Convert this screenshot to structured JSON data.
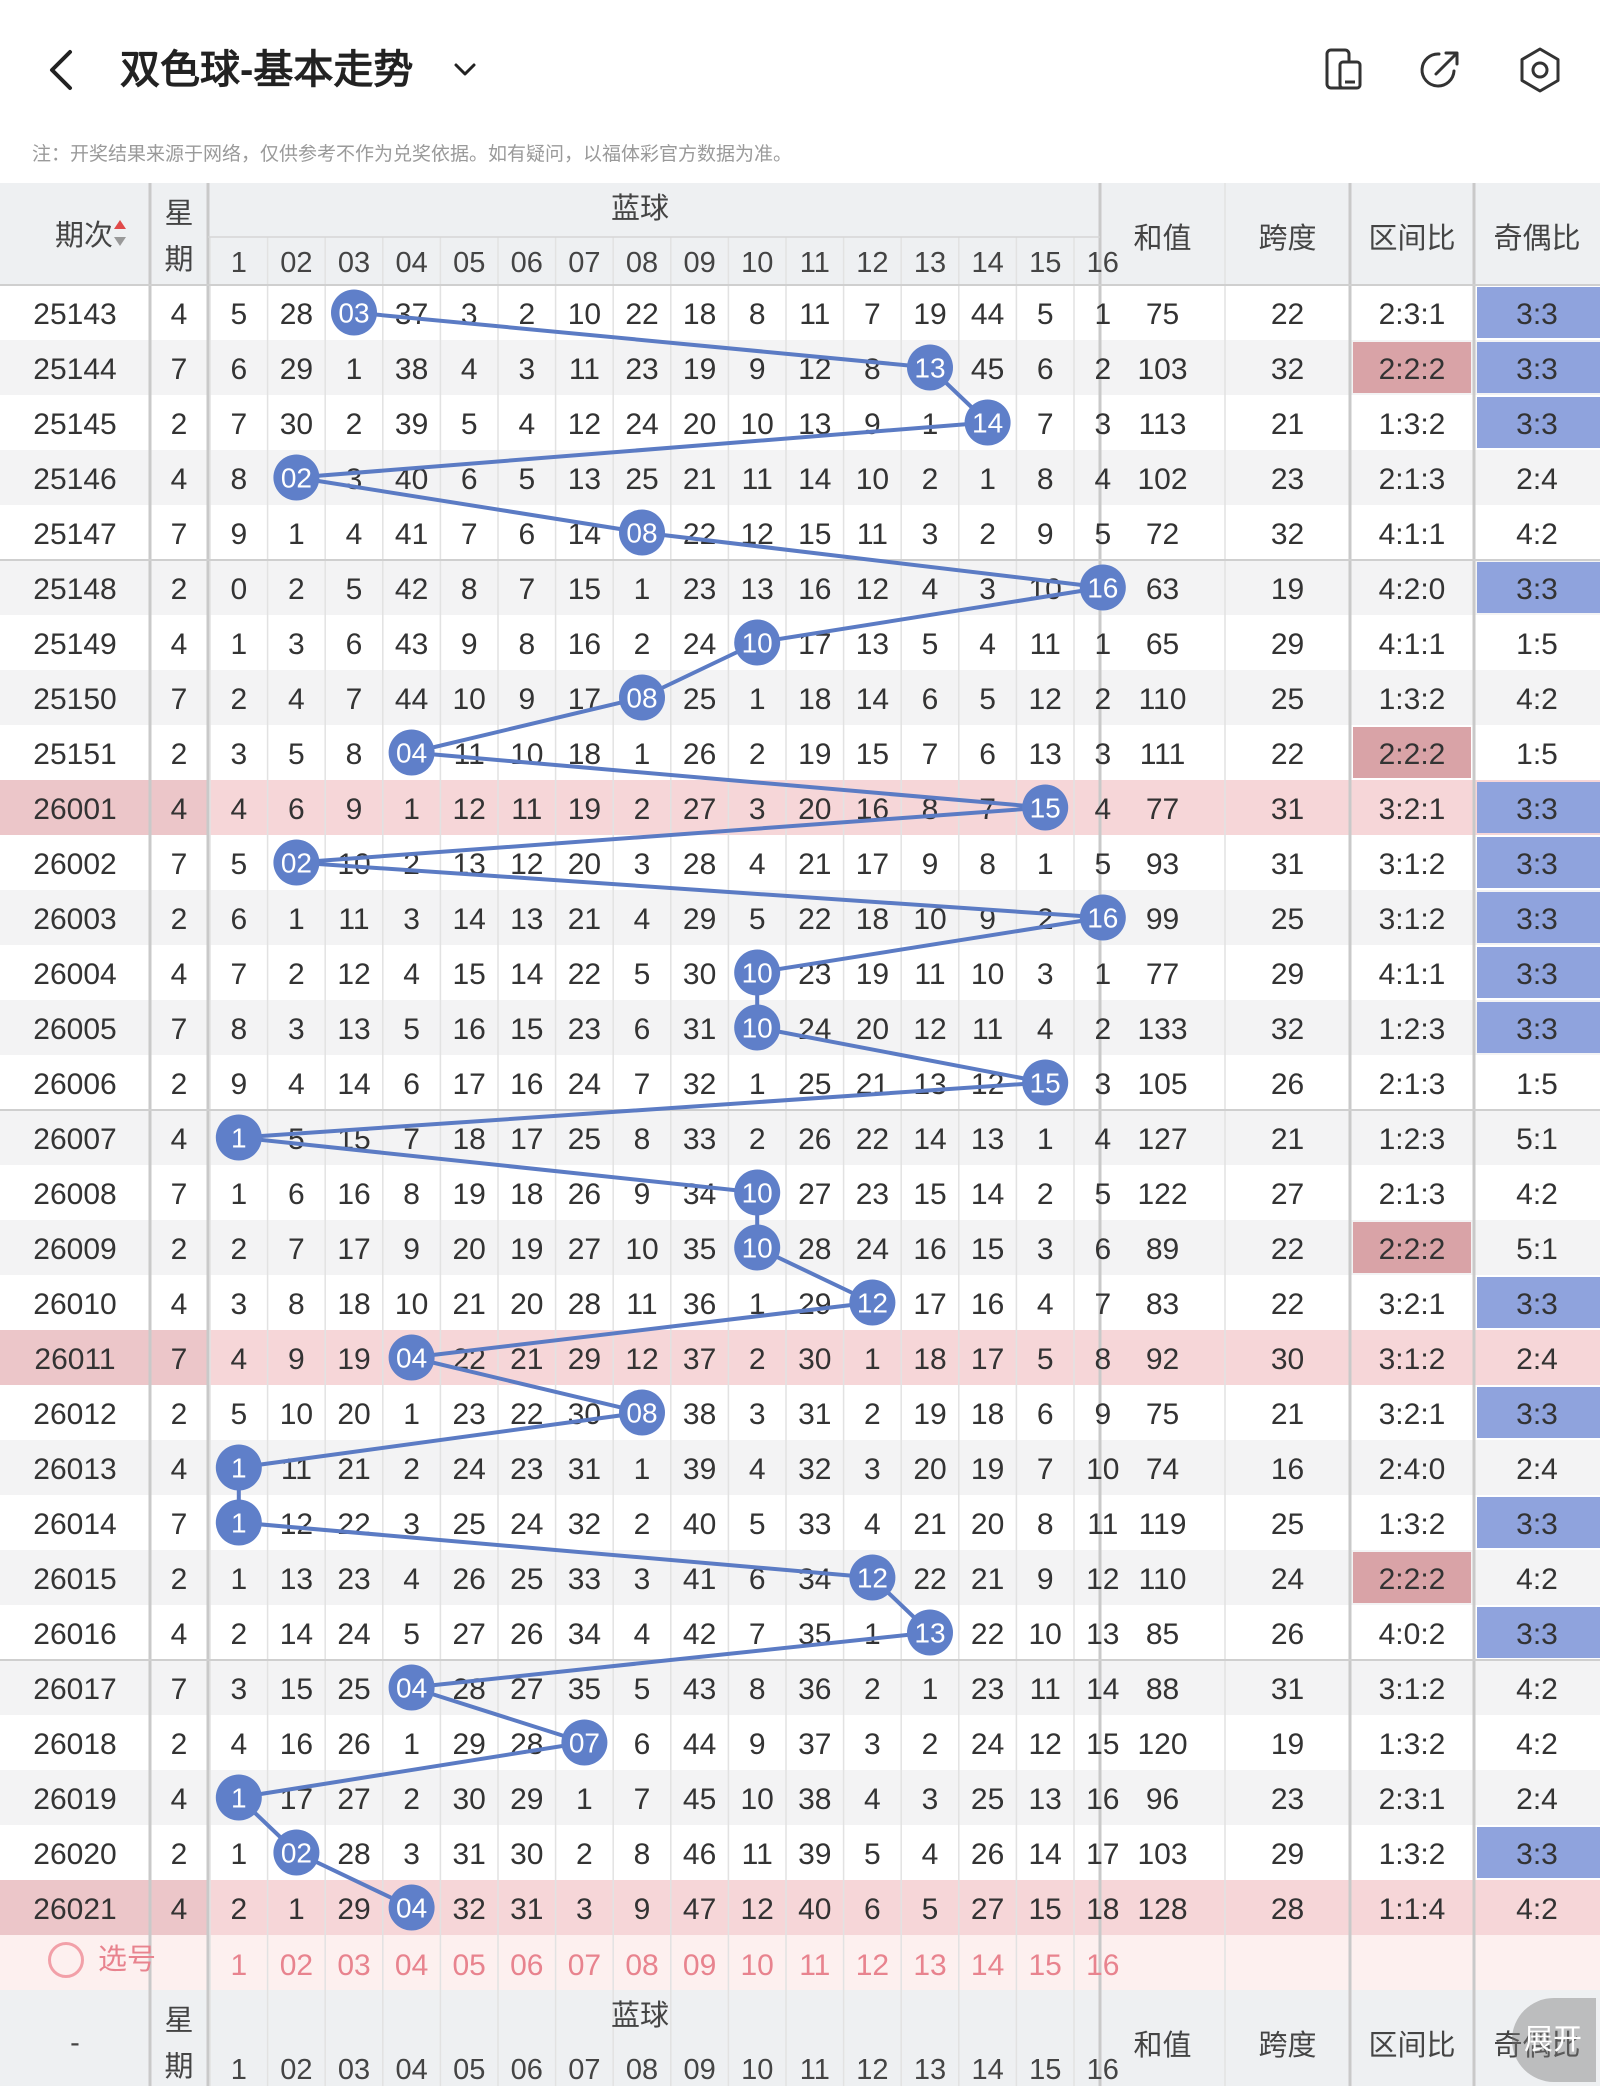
{
  "header": {
    "title": "双色球-基本走势",
    "icons": [
      "back-arrow-icon",
      "chevron-down-icon",
      "fold-device-icon",
      "share-icon",
      "settings-icon"
    ]
  },
  "notice": "注：开奖结果来源于网络，仅供参考不作为兑奖依据。如有疑问，以福体彩官方数据为准。",
  "table": {
    "headers": {
      "issue": "期次",
      "week": "星期",
      "blue": "蓝球",
      "sum": "和值",
      "span": "跨度",
      "zone_ratio": "区间比",
      "odd_even_ratio": "奇偶比"
    },
    "bottom_issue_placeholder": "-",
    "blue_columns": [
      "1",
      "02",
      "03",
      "04",
      "05",
      "06",
      "07",
      "08",
      "09",
      "10",
      "11",
      "12",
      "13",
      "14",
      "15",
      "16"
    ],
    "highlight_issues": [
      "26001",
      "26011",
      "26021"
    ],
    "rows": [
      {
        "issue": "25143",
        "week": "4",
        "blue": 3,
        "cells": [
          "5",
          "28",
          "03",
          "37",
          "3",
          "2",
          "10",
          "22",
          "18",
          "8",
          "11",
          "7",
          "19",
          "44",
          "5",
          "1"
        ],
        "sum": "75",
        "span": "22",
        "zone": "2:3:1",
        "oe": "3:3"
      },
      {
        "issue": "25144",
        "week": "7",
        "blue": 13,
        "cells": [
          "6",
          "29",
          "1",
          "38",
          "4",
          "3",
          "11",
          "23",
          "19",
          "9",
          "12",
          "8",
          "13",
          "45",
          "6",
          "2"
        ],
        "sum": "103",
        "span": "32",
        "zone": "2:2:2",
        "oe": "3:3"
      },
      {
        "issue": "25145",
        "week": "2",
        "blue": 14,
        "cells": [
          "7",
          "30",
          "2",
          "39",
          "5",
          "4",
          "12",
          "24",
          "20",
          "10",
          "13",
          "9",
          "1",
          "14",
          "7",
          "3"
        ],
        "sum": "113",
        "span": "21",
        "zone": "1:3:2",
        "oe": "3:3"
      },
      {
        "issue": "25146",
        "week": "4",
        "blue": 2,
        "cells": [
          "8",
          "02",
          "3",
          "40",
          "6",
          "5",
          "13",
          "25",
          "21",
          "11",
          "14",
          "10",
          "2",
          "1",
          "8",
          "4"
        ],
        "sum": "102",
        "span": "23",
        "zone": "2:1:3",
        "oe": "2:4"
      },
      {
        "issue": "25147",
        "week": "7",
        "blue": 8,
        "cells": [
          "9",
          "1",
          "4",
          "41",
          "7",
          "6",
          "14",
          "08",
          "22",
          "12",
          "15",
          "11",
          "3",
          "2",
          "9",
          "5"
        ],
        "sum": "72",
        "span": "32",
        "zone": "4:1:1",
        "oe": "4:2"
      },
      {
        "issue": "25148",
        "week": "2",
        "blue": 16,
        "cells": [
          "0",
          "2",
          "5",
          "42",
          "8",
          "7",
          "15",
          "1",
          "23",
          "13",
          "16",
          "12",
          "4",
          "3",
          "10",
          "16"
        ],
        "sum": "63",
        "span": "19",
        "zone": "4:2:0",
        "oe": "3:3"
      },
      {
        "issue": "25149",
        "week": "4",
        "blue": 10,
        "cells": [
          "1",
          "3",
          "6",
          "43",
          "9",
          "8",
          "16",
          "2",
          "24",
          "10",
          "17",
          "13",
          "5",
          "4",
          "11",
          "1"
        ],
        "sum": "65",
        "span": "29",
        "zone": "4:1:1",
        "oe": "1:5"
      },
      {
        "issue": "25150",
        "week": "7",
        "blue": 8,
        "cells": [
          "2",
          "4",
          "7",
          "44",
          "10",
          "9",
          "17",
          "08",
          "25",
          "1",
          "18",
          "14",
          "6",
          "5",
          "12",
          "2"
        ],
        "sum": "110",
        "span": "25",
        "zone": "1:3:2",
        "oe": "4:2"
      },
      {
        "issue": "25151",
        "week": "2",
        "blue": 4,
        "cells": [
          "3",
          "5",
          "8",
          "04",
          "11",
          "10",
          "18",
          "1",
          "26",
          "2",
          "19",
          "15",
          "7",
          "6",
          "13",
          "3"
        ],
        "sum": "111",
        "span": "22",
        "zone": "2:2:2",
        "oe": "1:5"
      },
      {
        "issue": "26001",
        "week": "4",
        "blue": 15,
        "cells": [
          "4",
          "6",
          "9",
          "1",
          "12",
          "11",
          "19",
          "2",
          "27",
          "3",
          "20",
          "16",
          "8",
          "7",
          "15",
          "4"
        ],
        "sum": "77",
        "span": "31",
        "zone": "3:2:1",
        "oe": "3:3"
      },
      {
        "issue": "26002",
        "week": "7",
        "blue": 2,
        "cells": [
          "5",
          "02",
          "10",
          "2",
          "13",
          "12",
          "20",
          "3",
          "28",
          "4",
          "21",
          "17",
          "9",
          "8",
          "1",
          "5"
        ],
        "sum": "93",
        "span": "31",
        "zone": "3:1:2",
        "oe": "3:3"
      },
      {
        "issue": "26003",
        "week": "2",
        "blue": 16,
        "cells": [
          "6",
          "1",
          "11",
          "3",
          "14",
          "13",
          "21",
          "4",
          "29",
          "5",
          "22",
          "18",
          "10",
          "9",
          "2",
          "16"
        ],
        "sum": "99",
        "span": "25",
        "zone": "3:1:2",
        "oe": "3:3"
      },
      {
        "issue": "26004",
        "week": "4",
        "blue": 10,
        "cells": [
          "7",
          "2",
          "12",
          "4",
          "15",
          "14",
          "22",
          "5",
          "30",
          "10",
          "23",
          "19",
          "11",
          "10",
          "3",
          "1"
        ],
        "sum": "77",
        "span": "29",
        "zone": "4:1:1",
        "oe": "3:3"
      },
      {
        "issue": "26005",
        "week": "7",
        "blue": 10,
        "cells": [
          "8",
          "3",
          "13",
          "5",
          "16",
          "15",
          "23",
          "6",
          "31",
          "10",
          "24",
          "20",
          "12",
          "11",
          "4",
          "2"
        ],
        "sum": "133",
        "span": "32",
        "zone": "1:2:3",
        "oe": "3:3"
      },
      {
        "issue": "26006",
        "week": "2",
        "blue": 15,
        "cells": [
          "9",
          "4",
          "14",
          "6",
          "17",
          "16",
          "24",
          "7",
          "32",
          "1",
          "25",
          "21",
          "13",
          "12",
          "15",
          "3"
        ],
        "sum": "105",
        "span": "26",
        "zone": "2:1:3",
        "oe": "1:5"
      },
      {
        "issue": "26007",
        "week": "4",
        "blue": 1,
        "cells": [
          "1",
          "5",
          "15",
          "7",
          "18",
          "17",
          "25",
          "8",
          "33",
          "2",
          "26",
          "22",
          "14",
          "13",
          "1",
          "4"
        ],
        "sum": "127",
        "span": "21",
        "zone": "1:2:3",
        "oe": "5:1"
      },
      {
        "issue": "26008",
        "week": "7",
        "blue": 10,
        "cells": [
          "1",
          "6",
          "16",
          "8",
          "19",
          "18",
          "26",
          "9",
          "34",
          "10",
          "27",
          "23",
          "15",
          "14",
          "2",
          "5"
        ],
        "sum": "122",
        "span": "27",
        "zone": "2:1:3",
        "oe": "4:2"
      },
      {
        "issue": "26009",
        "week": "2",
        "blue": 10,
        "cells": [
          "2",
          "7",
          "17",
          "9",
          "20",
          "19",
          "27",
          "10",
          "35",
          "10",
          "28",
          "24",
          "16",
          "15",
          "3",
          "6"
        ],
        "sum": "89",
        "span": "22",
        "zone": "2:2:2",
        "oe": "5:1"
      },
      {
        "issue": "26010",
        "week": "4",
        "blue": 12,
        "cells": [
          "3",
          "8",
          "18",
          "10",
          "21",
          "20",
          "28",
          "11",
          "36",
          "1",
          "29",
          "12",
          "17",
          "16",
          "4",
          "7"
        ],
        "sum": "83",
        "span": "22",
        "zone": "3:2:1",
        "oe": "3:3"
      },
      {
        "issue": "26011",
        "week": "7",
        "blue": 4,
        "cells": [
          "4",
          "9",
          "19",
          "04",
          "22",
          "21",
          "29",
          "12",
          "37",
          "2",
          "30",
          "1",
          "18",
          "17",
          "5",
          "8"
        ],
        "sum": "92",
        "span": "30",
        "zone": "3:1:2",
        "oe": "2:4"
      },
      {
        "issue": "26012",
        "week": "2",
        "blue": 8,
        "cells": [
          "5",
          "10",
          "20",
          "1",
          "23",
          "22",
          "30",
          "08",
          "38",
          "3",
          "31",
          "2",
          "19",
          "18",
          "6",
          "9"
        ],
        "sum": "75",
        "span": "21",
        "zone": "3:2:1",
        "oe": "3:3"
      },
      {
        "issue": "26013",
        "week": "4",
        "blue": 1,
        "cells": [
          "1",
          "11",
          "21",
          "2",
          "24",
          "23",
          "31",
          "1",
          "39",
          "4",
          "32",
          "3",
          "20",
          "19",
          "7",
          "10"
        ],
        "sum": "74",
        "span": "16",
        "zone": "2:4:0",
        "oe": "2:4"
      },
      {
        "issue": "26014",
        "week": "7",
        "blue": 1,
        "cells": [
          "1",
          "12",
          "22",
          "3",
          "25",
          "24",
          "32",
          "2",
          "40",
          "5",
          "33",
          "4",
          "21",
          "20",
          "8",
          "11"
        ],
        "sum": "119",
        "span": "25",
        "zone": "1:3:2",
        "oe": "3:3"
      },
      {
        "issue": "26015",
        "week": "2",
        "blue": 12,
        "cells": [
          "1",
          "13",
          "23",
          "4",
          "26",
          "25",
          "33",
          "3",
          "41",
          "6",
          "34",
          "12",
          "22",
          "21",
          "9",
          "12"
        ],
        "sum": "110",
        "span": "24",
        "zone": "2:2:2",
        "oe": "4:2"
      },
      {
        "issue": "26016",
        "week": "4",
        "blue": 13,
        "cells": [
          "2",
          "14",
          "24",
          "5",
          "27",
          "26",
          "34",
          "4",
          "42",
          "7",
          "35",
          "1",
          "13",
          "22",
          "10",
          "13"
        ],
        "sum": "85",
        "span": "26",
        "zone": "4:0:2",
        "oe": "3:3"
      },
      {
        "issue": "26017",
        "week": "7",
        "blue": 4,
        "cells": [
          "3",
          "15",
          "25",
          "04",
          "28",
          "27",
          "35",
          "5",
          "43",
          "8",
          "36",
          "2",
          "1",
          "23",
          "11",
          "14"
        ],
        "sum": "88",
        "span": "31",
        "zone": "3:1:2",
        "oe": "4:2"
      },
      {
        "issue": "26018",
        "week": "2",
        "blue": 7,
        "cells": [
          "4",
          "16",
          "26",
          "1",
          "29",
          "28",
          "07",
          "6",
          "44",
          "9",
          "37",
          "3",
          "2",
          "24",
          "12",
          "15"
        ],
        "sum": "120",
        "span": "19",
        "zone": "1:3:2",
        "oe": "4:2"
      },
      {
        "issue": "26019",
        "week": "4",
        "blue": 1,
        "cells": [
          "1",
          "17",
          "27",
          "2",
          "30",
          "29",
          "1",
          "7",
          "45",
          "10",
          "38",
          "4",
          "3",
          "25",
          "13",
          "16"
        ],
        "sum": "96",
        "span": "23",
        "zone": "2:3:1",
        "oe": "2:4"
      },
      {
        "issue": "26020",
        "week": "2",
        "blue": 2,
        "cells": [
          "1",
          "02",
          "28",
          "3",
          "31",
          "30",
          "2",
          "8",
          "46",
          "11",
          "39",
          "5",
          "4",
          "26",
          "14",
          "17"
        ],
        "sum": "103",
        "span": "29",
        "zone": "1:3:2",
        "oe": "3:3"
      },
      {
        "issue": "26021",
        "week": "4",
        "blue": 4,
        "cells": [
          "2",
          "1",
          "29",
          "04",
          "32",
          "31",
          "3",
          "9",
          "47",
          "12",
          "40",
          "6",
          "5",
          "27",
          "15",
          "18"
        ],
        "sum": "128",
        "span": "28",
        "zone": "1:1:4",
        "oe": "4:2"
      }
    ]
  },
  "select_row": {
    "label": "选号",
    "numbers": [
      "1",
      "02",
      "03",
      "04",
      "05",
      "06",
      "07",
      "08",
      "09",
      "10",
      "11",
      "12",
      "13",
      "14",
      "15",
      "16"
    ]
  },
  "expand_button": "展开",
  "colors": {
    "ball_blue": "#5f7fc9",
    "line_blue": "#5b7bc4",
    "highlight_row": "#f6d6d8",
    "highlight_issue": "#ecc6c9",
    "oe_blue": "#8fa3dd",
    "zone_red": "#d9a3a7",
    "select_text": "#e8838e",
    "header_bg": "#eef0f2"
  }
}
